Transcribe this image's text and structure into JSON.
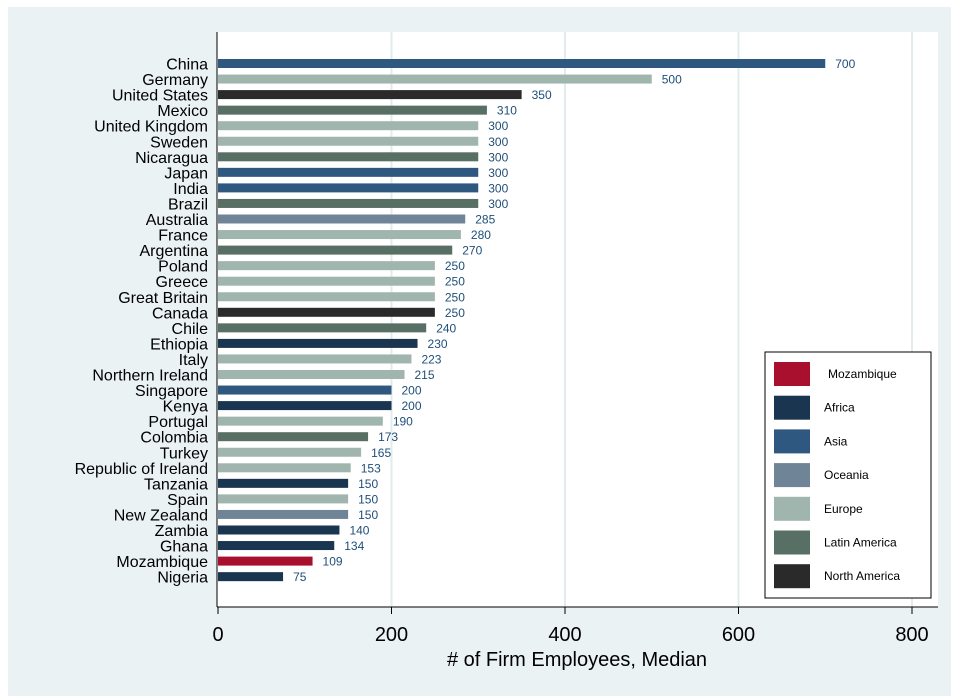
{
  "chart_data": {
    "type": "bar",
    "orientation": "horizontal",
    "categories": [
      "China",
      "Germany",
      "United States",
      "Mexico",
      "United Kingdom",
      "Sweden",
      "Nicaragua",
      "Japan",
      "India",
      "Brazil",
      "Australia",
      "France",
      "Argentina",
      "Poland",
      "Greece",
      "Great Britain",
      "Canada",
      "Chile",
      "Ethiopia",
      "Italy",
      "Northern Ireland",
      "Singapore",
      "Kenya",
      "Portugal",
      "Colombia",
      "Turkey",
      "Republic of Ireland",
      "Tanzania",
      "Spain",
      "New Zealand",
      "Zambia",
      "Ghana",
      "Mozambique",
      "Nigeria"
    ],
    "values": [
      700,
      500,
      350,
      310,
      300,
      300,
      300,
      300,
      300,
      300,
      285,
      280,
      270,
      250,
      250,
      250,
      250,
      240,
      230,
      223,
      215,
      200,
      200,
      190,
      173,
      165,
      153,
      150,
      150,
      150,
      140,
      134,
      109,
      75
    ],
    "regions": [
      "Asia",
      "Europe",
      "North America",
      "Latin America",
      "Europe",
      "Europe",
      "Latin America",
      "Asia",
      "Asia",
      "Latin America",
      "Oceania",
      "Europe",
      "Latin America",
      "Europe",
      "Europe",
      "Europe",
      "North America",
      "Latin America",
      "Africa",
      "Europe",
      "Europe",
      "Asia",
      "Africa",
      "Europe",
      "Latin America",
      "Europe",
      "Europe",
      "Africa",
      "Europe",
      "Oceania",
      "Africa",
      "Africa",
      "Mozambique",
      "Africa"
    ],
    "xlabel": "# of Firm Employees, Median",
    "xlim": [
      0,
      800
    ],
    "xticks": [
      "0",
      "200",
      "400",
      "600",
      "800"
    ],
    "grid": true,
    "legend_position": "bottom-right",
    "legend": [
      {
        "name": "Mozambique",
        "color": "#a8102e"
      },
      {
        "name": "Africa",
        "color": "#1a3550"
      },
      {
        "name": "Asia",
        "color": "#2f5880"
      },
      {
        "name": "Oceania",
        "color": "#6f8597"
      },
      {
        "name": "Europe",
        "color": "#9fb5ad"
      },
      {
        "name": "Latin America",
        "color": "#586f65"
      },
      {
        "name": "North America",
        "color": "#2a2a2a"
      }
    ]
  }
}
